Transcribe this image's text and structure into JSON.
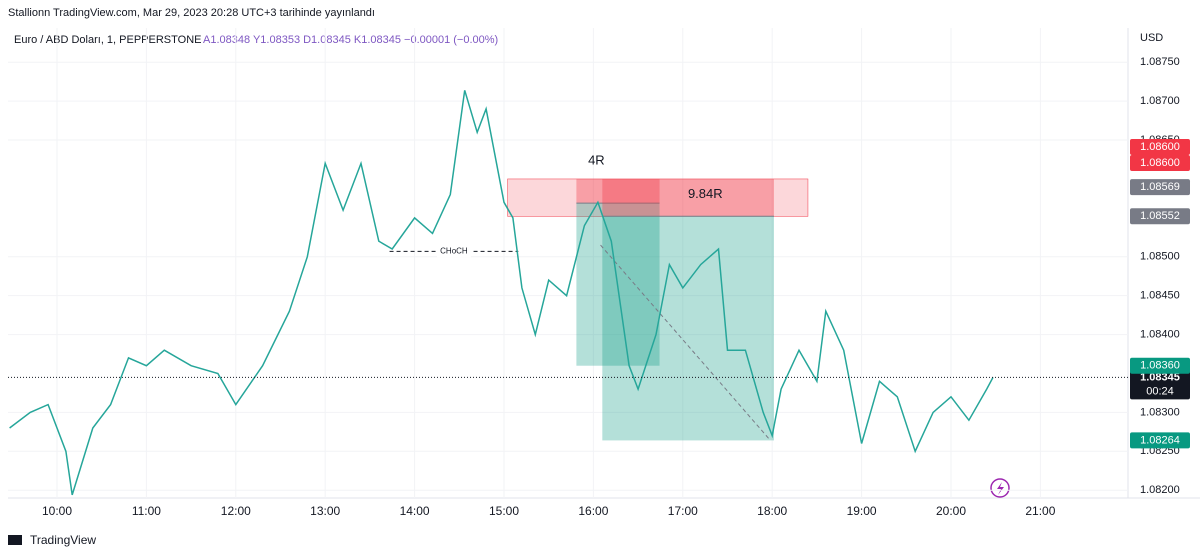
{
  "header": "Stallionn TradingView.com, Mar 29, 2023 20:28 UTC+3 tarihinde yayınlandı",
  "footer": "TradingView",
  "chart_data": {
    "type": "line",
    "symbol": "Euro / ABD Doları, 1, PEPPERSTONE",
    "ohlc_text": "A1.08348 Y1.08353 D1.08345 K1.08345 −0.00001 (−0.00%)",
    "currency": "USD",
    "x": [
      9.47,
      9.7,
      9.9,
      10.1,
      10.17,
      10.4,
      10.6,
      10.8,
      11.0,
      11.2,
      11.5,
      11.8,
      12.0,
      12.3,
      12.6,
      12.8,
      13.0,
      13.2,
      13.4,
      13.6,
      13.75,
      14.0,
      14.2,
      14.4,
      14.56,
      14.7,
      14.8,
      15.0,
      15.1,
      15.2,
      15.35,
      15.5,
      15.7,
      15.9,
      16.05,
      16.2,
      16.4,
      16.5,
      16.7,
      16.85,
      17.0,
      17.2,
      17.4,
      17.5,
      17.7,
      17.9,
      18.0,
      18.1,
      18.3,
      18.5,
      18.6,
      18.8,
      19.0,
      19.2,
      19.4,
      19.6,
      19.8,
      20.0,
      20.2,
      20.4,
      20.47
    ],
    "series": [
      {
        "name": "EURUSD",
        "color": "#26a69a",
        "values": [
          1.0828,
          1.083,
          1.0831,
          1.0825,
          1.08194,
          1.0828,
          1.0831,
          1.0837,
          1.0836,
          1.0838,
          1.0836,
          1.0835,
          1.0831,
          1.0836,
          1.0843,
          1.085,
          1.0862,
          1.0856,
          1.0862,
          1.0852,
          1.0851,
          1.0855,
          1.0853,
          1.0858,
          1.08714,
          1.0866,
          1.0869,
          1.0857,
          1.0855,
          1.0846,
          1.084,
          1.0847,
          1.0845,
          1.0854,
          1.0857,
          1.0852,
          1.0836,
          1.0833,
          1.084,
          1.0849,
          1.0846,
          1.0849,
          1.0851,
          1.0838,
          1.0838,
          1.083,
          1.0827,
          1.0833,
          1.0838,
          1.0834,
          1.0843,
          1.0838,
          1.0826,
          1.0834,
          1.0832,
          1.0825,
          1.083,
          1.0832,
          1.0829,
          1.0833,
          1.08345
        ]
      }
    ],
    "xlim": [
      9.452,
      21.98
    ],
    "ylim": [
      1.0819,
      1.08794
    ],
    "xticks": [
      {
        "value": 10,
        "label": "10:00"
      },
      {
        "value": 11,
        "label": "11:00"
      },
      {
        "value": 12,
        "label": "12:00"
      },
      {
        "value": 13,
        "label": "13:00"
      },
      {
        "value": 14,
        "label": "14:00"
      },
      {
        "value": 15,
        "label": "15:00"
      },
      {
        "value": 16,
        "label": "16:00"
      },
      {
        "value": 17,
        "label": "17:00"
      },
      {
        "value": 18,
        "label": "18:00"
      },
      {
        "value": 19,
        "label": "19:00"
      },
      {
        "value": 20,
        "label": "20:00"
      },
      {
        "value": 21,
        "label": "21:00"
      }
    ],
    "yticks": [
      {
        "value": 1.082,
        "label": "1.08200"
      },
      {
        "value": 1.0825,
        "label": "1.08250"
      },
      {
        "value": 1.083,
        "label": "1.08300"
      },
      {
        "value": 1.084,
        "label": "1.08400"
      },
      {
        "value": 1.0845,
        "label": "1.08450"
      },
      {
        "value": 1.085,
        "label": "1.08500"
      },
      {
        "value": 1.0865,
        "label": "1.08650"
      },
      {
        "value": 1.087,
        "label": "1.08700"
      },
      {
        "value": 1.0875,
        "label": "1.08750"
      }
    ],
    "grid": true,
    "zone": {
      "x": [
        15.04,
        18.4
      ],
      "top": 1.086,
      "bottom": 1.08552
    },
    "positions": [
      {
        "label": "4R",
        "x": [
          15.81,
          16.74
        ],
        "stop": 1.086,
        "entry": 1.08569,
        "target": 1.0836
      },
      {
        "label": "9.84R",
        "x": [
          16.1,
          18.02
        ],
        "stop": 1.086,
        "entry": 1.08552,
        "target": 1.08264
      }
    ],
    "choch": {
      "label": "CHoCH",
      "x": [
        13.72,
        15.16
      ],
      "price": 1.08507
    },
    "trendline": {
      "x": [
        16.08,
        17.98
      ],
      "price": [
        1.08515,
        1.08264
      ]
    },
    "price_badges": [
      {
        "value": 1.086,
        "label": "1.08600",
        "color": "#f23645"
      },
      {
        "value": 1.086,
        "label": "1.08600",
        "color": "#f23645"
      },
      {
        "value": 1.08569,
        "label": "1.08569",
        "color": "#787b86"
      },
      {
        "value": 1.08552,
        "label": "1.08552",
        "color": "#787b86"
      },
      {
        "value": 1.0836,
        "label": "1.08360",
        "color": "#089981"
      },
      {
        "value": 1.08264,
        "label": "1.08264",
        "color": "#089981"
      }
    ],
    "last_price": {
      "value": 1.08345,
      "label": "1.08345",
      "countdown": "00:24"
    }
  }
}
